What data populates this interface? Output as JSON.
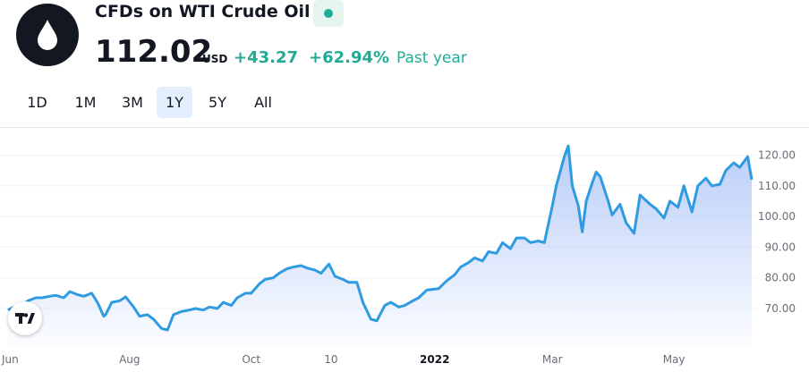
{
  "header": {
    "title": "CFDs on WTI Crude Oil",
    "price": "112.02",
    "currency": "USD",
    "change": "+43.27",
    "change_percent": "+62.94%",
    "period_label": "Past year",
    "logo_icon": "oil-drop-icon",
    "status_color": "#22ab94",
    "change_color": "#22ab94"
  },
  "ranges": [
    {
      "label": "1D",
      "active": false
    },
    {
      "label": "1M",
      "active": false
    },
    {
      "label": "3M",
      "active": false
    },
    {
      "label": "1Y",
      "active": true
    },
    {
      "label": "5Y",
      "active": false
    },
    {
      "label": "All",
      "active": false
    }
  ],
  "chart_data": {
    "type": "area",
    "line_color": "#2f9be0",
    "fill_color": "#bcd2fa",
    "x_ticks": [
      "Jun",
      "Aug",
      "Oct",
      "10",
      "2022",
      "Mar",
      "May"
    ],
    "y_ticks": [
      "70.00",
      "80.00",
      "90.00",
      "100.00",
      "110.00",
      "120.00"
    ],
    "ylim": [
      60,
      126
    ],
    "grid": true,
    "x": [
      "2021-06-01",
      "2021-06-04",
      "2021-06-08",
      "2021-06-11",
      "2021-06-15",
      "2021-06-18",
      "2021-06-22",
      "2021-06-25",
      "2021-06-29",
      "2021-07-02",
      "2021-07-06",
      "2021-07-09",
      "2021-07-13",
      "2021-07-16",
      "2021-07-19",
      "2021-07-20",
      "2021-07-23",
      "2021-07-27",
      "2021-07-30",
      "2021-08-03",
      "2021-08-06",
      "2021-08-10",
      "2021-08-13",
      "2021-08-17",
      "2021-08-20",
      "2021-08-23",
      "2021-08-27",
      "2021-08-31",
      "2021-09-03",
      "2021-09-07",
      "2021-09-10",
      "2021-09-14",
      "2021-09-17",
      "2021-09-21",
      "2021-09-24",
      "2021-09-28",
      "2021-10-01",
      "2021-10-05",
      "2021-10-08",
      "2021-10-12",
      "2021-10-15",
      "2021-10-19",
      "2021-10-22",
      "2021-10-26",
      "2021-10-29",
      "2021-11-02",
      "2021-11-05",
      "2021-11-09",
      "2021-11-12",
      "2021-11-16",
      "2021-11-19",
      "2021-11-23",
      "2021-11-26",
      "2021-11-30",
      "2021-12-03",
      "2021-12-07",
      "2021-12-10",
      "2021-12-14",
      "2021-12-17",
      "2021-12-21",
      "2021-12-24",
      "2021-12-28",
      "2022-01-03",
      "2022-01-07",
      "2022-01-11",
      "2022-01-14",
      "2022-01-18",
      "2022-01-21",
      "2022-01-25",
      "2022-01-28",
      "2022-02-01",
      "2022-02-04",
      "2022-02-08",
      "2022-02-11",
      "2022-02-15",
      "2022-02-18",
      "2022-02-22",
      "2022-02-25",
      "2022-03-01",
      "2022-03-03",
      "2022-03-07",
      "2022-03-09",
      "2022-03-11",
      "2022-03-14",
      "2022-03-16",
      "2022-03-18",
      "2022-03-21",
      "2022-03-23",
      "2022-03-25",
      "2022-03-29",
      "2022-03-31",
      "2022-04-04",
      "2022-04-07",
      "2022-04-11",
      "2022-04-14",
      "2022-04-19",
      "2022-04-22",
      "2022-04-26",
      "2022-04-29",
      "2022-05-03",
      "2022-05-06",
      "2022-05-10",
      "2022-05-13",
      "2022-05-17",
      "2022-05-20",
      "2022-05-24",
      "2022-05-27",
      "2022-05-31",
      "2022-06-03",
      "2022-06-07",
      "2022-06-09"
    ],
    "values": [
      69.5,
      70.5,
      71.0,
      72.5,
      73.5,
      73.5,
      74.0,
      74.3,
      73.5,
      75.5,
      74.5,
      74.0,
      75.0,
      71.8,
      67.5,
      68.0,
      72.0,
      72.5,
      73.8,
      70.5,
      67.5,
      68.0,
      66.5,
      63.5,
      63.0,
      68.0,
      69.0,
      69.5,
      70.0,
      69.5,
      70.5,
      70.0,
      72.0,
      71.0,
      73.5,
      75.0,
      75.0,
      78.0,
      79.5,
      80.0,
      81.5,
      83.0,
      83.5,
      84.0,
      83.2,
      82.5,
      81.5,
      84.5,
      80.5,
      79.5,
      78.5,
      78.5,
      72.0,
      66.5,
      66.0,
      71.0,
      72.0,
      70.5,
      71.0,
      72.5,
      73.5,
      76.0,
      76.5,
      79.0,
      81.0,
      83.5,
      85.0,
      86.5,
      85.5,
      88.5,
      88.0,
      91.5,
      89.5,
      93.0,
      93.0,
      91.5,
      92.0,
      91.5,
      103.5,
      110.0,
      119.5,
      123.0,
      110.0,
      103.5,
      95.0,
      105.0,
      111.0,
      114.5,
      113.0,
      105.0,
      100.5,
      104.0,
      98.0,
      94.5,
      107.0,
      104.0,
      102.5,
      99.5,
      105.0,
      103.0,
      110.0,
      101.5,
      110.0,
      112.5,
      110.0,
      110.5,
      115.0,
      117.5,
      116.0,
      119.5,
      112.0
    ]
  },
  "tv_logo_icon": "tradingview-logo-icon"
}
